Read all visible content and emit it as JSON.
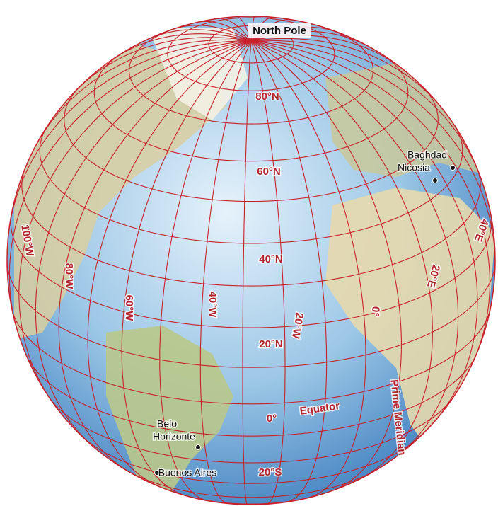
{
  "pole": "North Pole",
  "parallels": [
    "80°N",
    "60°N",
    "40°N",
    "20°N",
    "0°",
    "20°S"
  ],
  "meridians": [
    "100°W",
    "80°W",
    "60°W",
    "40°W",
    "20°W",
    "0°",
    "20°E",
    "40°E"
  ],
  "equator": "Equator",
  "prime_meridian": "Prime Meridian",
  "cities": [
    {
      "lines": [
        "Baghdad"
      ]
    },
    {
      "lines": [
        "Nicosia"
      ]
    },
    {
      "lines": [
        "Belo",
        "Horizonte"
      ]
    },
    {
      "lines": [
        "Buenos Aires"
      ]
    }
  ]
}
